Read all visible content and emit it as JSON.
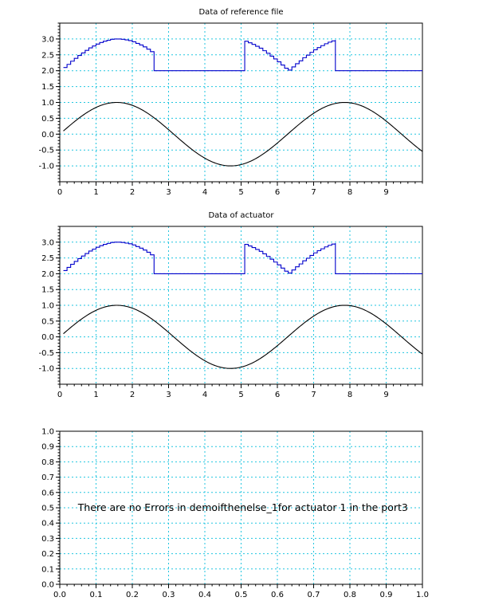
{
  "colors": {
    "background": "#ffffff",
    "grid": "#22c6e0",
    "step_series": "#0000cc",
    "sine_series": "#000000",
    "axes": "#000000"
  },
  "chart_data": [
    {
      "type": "line",
      "title": "Data of reference file",
      "xlabel": "",
      "ylabel": "",
      "xlim": [
        0,
        10
      ],
      "ylim": [
        -1.5,
        3.5
      ],
      "grid": true,
      "x_ticks": [
        0,
        1,
        2,
        3,
        4,
        5,
        6,
        7,
        8,
        9
      ],
      "y_ticks": [
        -1.0,
        -0.5,
        0.0,
        0.5,
        1.0,
        1.5,
        2.0,
        2.5,
        3.0
      ],
      "x_tick_labels": [
        "0",
        "1",
        "2",
        "3",
        "4",
        "5",
        "6",
        "7",
        "8",
        "9"
      ],
      "y_tick_labels": [
        "-1.0",
        "-0.5",
        "0.0",
        "0.5",
        "1.0",
        "1.5",
        "2.0",
        "2.5",
        "3.0"
      ],
      "series": [
        {
          "style": "step",
          "color": "#0000cc",
          "description": "staircase of 2 + |sin(t)| segments",
          "x": [
            0.1,
            0.2,
            0.3,
            0.4,
            0.5,
            0.6,
            0.7,
            0.8,
            0.9,
            1.0,
            1.1,
            1.2,
            1.3,
            1.4,
            1.5,
            1.6,
            1.7,
            1.8,
            1.9,
            2.0,
            2.1,
            2.2,
            2.3,
            2.4,
            2.5,
            2.6,
            2.6,
            5.1,
            5.1,
            5.2,
            5.3,
            5.4,
            5.5,
            5.6,
            5.7,
            5.8,
            5.9,
            6.0,
            6.1,
            6.2,
            6.3,
            6.4,
            6.5,
            6.6,
            6.7,
            6.8,
            6.9,
            7.0,
            7.1,
            7.2,
            7.3,
            7.4,
            7.5,
            7.6,
            7.6,
            10.0
          ],
          "y": [
            2.1,
            2.2,
            2.3,
            2.39,
            2.48,
            2.56,
            2.64,
            2.72,
            2.78,
            2.84,
            2.89,
            2.93,
            2.96,
            2.99,
            3.0,
            3.0,
            2.99,
            2.97,
            2.95,
            2.91,
            2.86,
            2.81,
            2.75,
            2.68,
            2.6,
            2.52,
            2.0,
            2.0,
            2.93,
            2.88,
            2.83,
            2.77,
            2.71,
            2.63,
            2.55,
            2.46,
            2.37,
            2.28,
            2.18,
            2.08,
            2.02,
            2.12,
            2.22,
            2.31,
            2.41,
            2.49,
            2.58,
            2.66,
            2.73,
            2.79,
            2.85,
            2.9,
            2.94,
            2.97,
            2.0,
            2.0
          ]
        },
        {
          "style": "line",
          "color": "#000000",
          "function": "sin",
          "x_range": [
            0.1,
            10.0
          ]
        }
      ]
    },
    {
      "type": "line",
      "title": "Data of actuator",
      "xlabel": "",
      "ylabel": "",
      "xlim": [
        0,
        10
      ],
      "ylim": [
        -1.5,
        3.5
      ],
      "grid": true,
      "x_ticks": [
        0,
        1,
        2,
        3,
        4,
        5,
        6,
        7,
        8,
        9
      ],
      "y_ticks": [
        -1.0,
        -0.5,
        0.0,
        0.5,
        1.0,
        1.5,
        2.0,
        2.5,
        3.0
      ],
      "x_tick_labels": [
        "0",
        "1",
        "2",
        "3",
        "4",
        "5",
        "6",
        "7",
        "8",
        "9"
      ],
      "y_tick_labels": [
        "-1.0",
        "-0.5",
        "0.0",
        "0.5",
        "1.0",
        "1.5",
        "2.0",
        "2.5",
        "3.0"
      ],
      "series": [
        {
          "style": "step",
          "color": "#0000cc",
          "description": "staircase of 2 + |sin(t)| segments",
          "x": [
            0.1,
            0.2,
            0.3,
            0.4,
            0.5,
            0.6,
            0.7,
            0.8,
            0.9,
            1.0,
            1.1,
            1.2,
            1.3,
            1.4,
            1.5,
            1.6,
            1.7,
            1.8,
            1.9,
            2.0,
            2.1,
            2.2,
            2.3,
            2.4,
            2.5,
            2.6,
            2.6,
            5.1,
            5.1,
            5.2,
            5.3,
            5.4,
            5.5,
            5.6,
            5.7,
            5.8,
            5.9,
            6.0,
            6.1,
            6.2,
            6.3,
            6.4,
            6.5,
            6.6,
            6.7,
            6.8,
            6.9,
            7.0,
            7.1,
            7.2,
            7.3,
            7.4,
            7.5,
            7.6,
            7.6,
            10.0
          ],
          "y": [
            2.1,
            2.2,
            2.3,
            2.39,
            2.48,
            2.56,
            2.64,
            2.72,
            2.78,
            2.84,
            2.89,
            2.93,
            2.96,
            2.99,
            3.0,
            3.0,
            2.99,
            2.97,
            2.95,
            2.91,
            2.86,
            2.81,
            2.75,
            2.68,
            2.6,
            2.52,
            2.0,
            2.0,
            2.93,
            2.88,
            2.83,
            2.77,
            2.71,
            2.63,
            2.55,
            2.46,
            2.37,
            2.28,
            2.18,
            2.08,
            2.02,
            2.12,
            2.22,
            2.31,
            2.41,
            2.49,
            2.58,
            2.66,
            2.73,
            2.79,
            2.85,
            2.9,
            2.94,
            2.97,
            2.0,
            2.0
          ]
        },
        {
          "style": "line",
          "color": "#000000",
          "function": "sin",
          "x_range": [
            0.1,
            10.0
          ]
        }
      ]
    },
    {
      "type": "line",
      "title": "",
      "xlabel": "",
      "ylabel": "",
      "xlim": [
        0,
        1
      ],
      "ylim": [
        0,
        1
      ],
      "grid": true,
      "x_ticks": [
        0.0,
        0.1,
        0.2,
        0.3,
        0.4,
        0.5,
        0.6,
        0.7,
        0.8,
        0.9,
        1.0
      ],
      "y_ticks": [
        0.0,
        0.1,
        0.2,
        0.3,
        0.4,
        0.5,
        0.6,
        0.7,
        0.8,
        0.9,
        1.0
      ],
      "x_tick_labels": [
        "0.0",
        "0.1",
        "0.2",
        "0.3",
        "0.4",
        "0.5",
        "0.6",
        "0.7",
        "0.8",
        "0.9",
        "1.0"
      ],
      "y_tick_labels": [
        "0.0",
        "0.1",
        "0.2",
        "0.3",
        "0.4",
        "0.5",
        "0.6",
        "0.7",
        "0.8",
        "0.9",
        "1.0"
      ],
      "series": [],
      "annotations": [
        {
          "text": "There are no Errors in demoifthenelse_1for actuator  1 in the port3",
          "x": 0.05,
          "y": 0.5
        }
      ]
    }
  ]
}
